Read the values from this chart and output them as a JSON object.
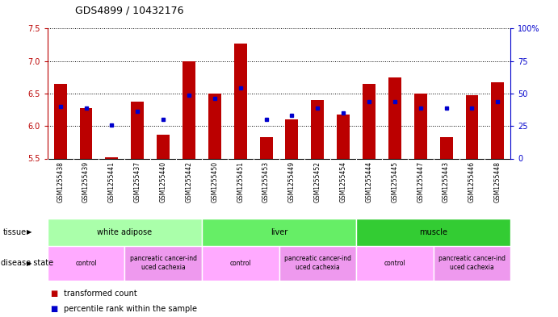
{
  "title": "GDS4899 / 10432176",
  "samples": [
    "GSM1255438",
    "GSM1255439",
    "GSM1255441",
    "GSM1255437",
    "GSM1255440",
    "GSM1255442",
    "GSM1255450",
    "GSM1255451",
    "GSM1255453",
    "GSM1255449",
    "GSM1255452",
    "GSM1255454",
    "GSM1255444",
    "GSM1255445",
    "GSM1255447",
    "GSM1255443",
    "GSM1255446",
    "GSM1255448"
  ],
  "red_values": [
    6.65,
    6.28,
    5.52,
    6.37,
    5.87,
    7.0,
    6.5,
    7.27,
    5.83,
    6.1,
    6.4,
    6.18,
    6.65,
    6.75,
    6.5,
    5.83,
    6.48,
    6.67
  ],
  "blue_values": [
    6.3,
    6.27,
    6.02,
    6.22,
    6.1,
    6.48,
    6.42,
    6.58,
    6.1,
    6.16,
    6.27,
    6.2,
    6.38,
    6.37,
    6.27,
    6.27,
    6.27,
    6.37
  ],
  "y_min": 5.5,
  "y_max": 7.5,
  "y_ticks": [
    5.5,
    6.0,
    6.5,
    7.0,
    7.5
  ],
  "right_y_ticks": [
    0,
    25,
    50,
    75,
    100
  ],
  "right_y_tick_labels": [
    "0",
    "25",
    "50",
    "75",
    "100%"
  ],
  "bar_color": "#bb0000",
  "dot_color": "#0000cc",
  "tissue_groups": [
    {
      "label": "white adipose",
      "start": 0,
      "end": 6,
      "color": "#aaffaa"
    },
    {
      "label": "liver",
      "start": 6,
      "end": 12,
      "color": "#66ee66"
    },
    {
      "label": "muscle",
      "start": 12,
      "end": 18,
      "color": "#33cc33"
    }
  ],
  "disease_groups": [
    {
      "label": "control",
      "start": 0,
      "end": 3,
      "color": "#ffaaff"
    },
    {
      "label": "pancreatic cancer-ind\nuced cachexia",
      "start": 3,
      "end": 6,
      "color": "#ee99ee"
    },
    {
      "label": "control",
      "start": 6,
      "end": 9,
      "color": "#ffaaff"
    },
    {
      "label": "pancreatic cancer-ind\nuced cachexia",
      "start": 9,
      "end": 12,
      "color": "#ee99ee"
    },
    {
      "label": "control",
      "start": 12,
      "end": 15,
      "color": "#ffaaff"
    },
    {
      "label": "pancreatic cancer-ind\nuced cachexia",
      "start": 15,
      "end": 18,
      "color": "#ee99ee"
    }
  ],
  "legend_red_label": "transformed count",
  "legend_blue_label": "percentile rank within the sample",
  "tissue_label": "tissue",
  "disease_label": "disease state",
  "background_color": "#ffffff",
  "plot_bg_color": "#ffffff",
  "xtick_bg_color": "#cccccc",
  "bar_width": 0.5,
  "grid_dotted_ticks": [
    6.0,
    6.5,
    7.0,
    7.5
  ]
}
